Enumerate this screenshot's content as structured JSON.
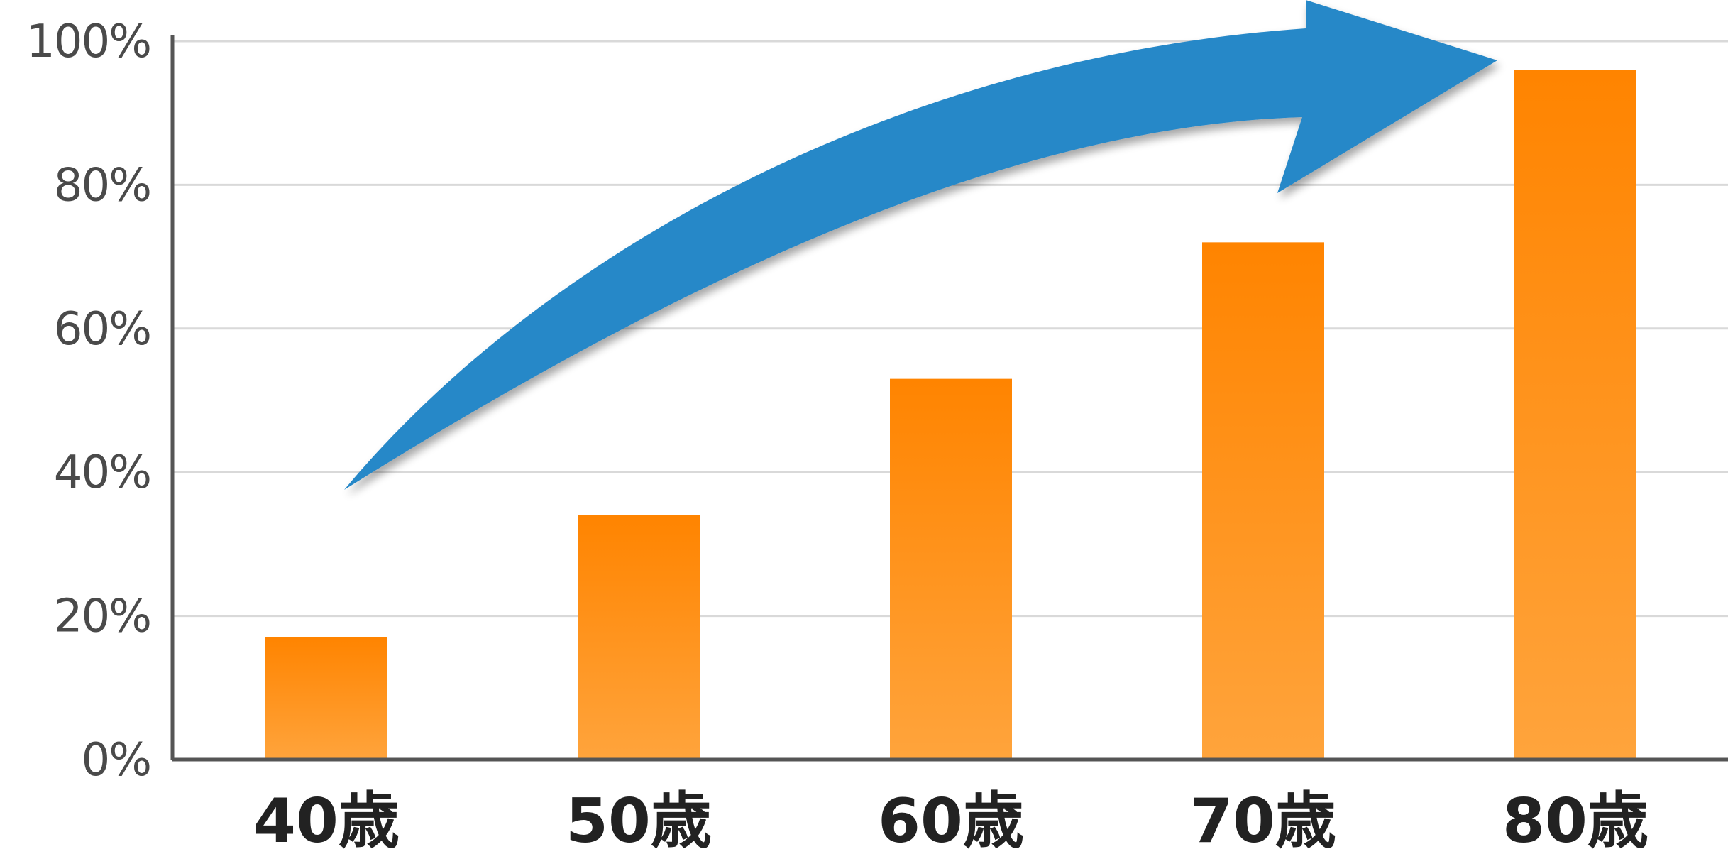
{
  "chart_data": {
    "type": "bar",
    "categories": [
      "40歳",
      "50歳",
      "60歳",
      "70歳",
      "80歳"
    ],
    "values": [
      17,
      34,
      53,
      72,
      96
    ],
    "title": "",
    "xlabel": "",
    "ylabel": "",
    "ylim": [
      0,
      100
    ],
    "y_ticks": [
      "0%",
      "20%",
      "40%",
      "60%",
      "80%",
      "100%"
    ],
    "y_tick_values": [
      0,
      20,
      40,
      60,
      80,
      100
    ],
    "grid": true,
    "legend": "none",
    "bar_color_top": "#ff8400",
    "bar_color_bottom": "#ffa43c",
    "arrow_color": "#2888c8",
    "annotations": [
      "upward trend arrow"
    ]
  }
}
